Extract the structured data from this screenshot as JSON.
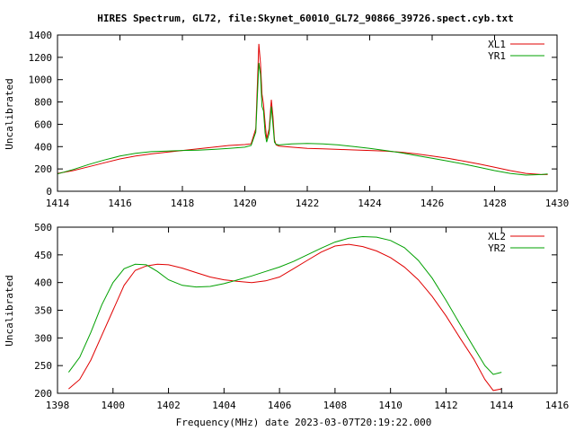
{
  "figure": {
    "title": "HIRES Spectrum, GL72, file:Skynet_60010_GL72_90866_39726.spect.cyb.txt",
    "xlabel": "Frequency(MHz) date 2023-03-07T20:19:22.000"
  },
  "chart_data": [
    {
      "type": "line",
      "ylabel": "Uncalibrated",
      "xlim": [
        1414,
        1430
      ],
      "ylim": [
        0,
        1400
      ],
      "xticks": [
        1414,
        1416,
        1418,
        1420,
        1422,
        1424,
        1426,
        1428,
        1430
      ],
      "yticks": [
        0,
        200,
        400,
        600,
        800,
        1000,
        1200,
        1400
      ],
      "grid": false,
      "legend_position": "top-right",
      "series": [
        {
          "name": "XL1",
          "color": "#e00000",
          "x": [
            1414.0,
            1414.5,
            1415.0,
            1415.5,
            1416.0,
            1416.5,
            1417.0,
            1417.5,
            1418.0,
            1418.5,
            1419.0,
            1419.5,
            1420.0,
            1420.2,
            1420.35,
            1420.45,
            1420.5,
            1420.55,
            1420.6,
            1420.65,
            1420.7,
            1420.78,
            1420.85,
            1420.9,
            1420.95,
            1421.0,
            1421.1,
            1421.5,
            1422.0,
            1422.5,
            1423.0,
            1423.5,
            1424.0,
            1424.5,
            1425.0,
            1425.5,
            1426.0,
            1426.5,
            1427.0,
            1427.5,
            1428.0,
            1428.5,
            1429.0,
            1429.5,
            1429.7
          ],
          "y": [
            160,
            185,
            220,
            255,
            290,
            315,
            335,
            350,
            365,
            380,
            395,
            410,
            418,
            425,
            560,
            1320,
            1150,
            870,
            780,
            610,
            470,
            560,
            820,
            670,
            460,
            415,
            405,
            395,
            385,
            380,
            375,
            370,
            365,
            360,
            350,
            335,
            315,
            295,
            270,
            245,
            215,
            185,
            160,
            150,
            150
          ]
        },
        {
          "name": "YR1",
          "color": "#00a000",
          "x": [
            1414.0,
            1414.5,
            1415.0,
            1415.5,
            1416.0,
            1416.5,
            1417.0,
            1417.5,
            1418.0,
            1418.5,
            1419.0,
            1419.5,
            1420.0,
            1420.2,
            1420.35,
            1420.45,
            1420.5,
            1420.55,
            1420.6,
            1420.65,
            1420.7,
            1420.78,
            1420.85,
            1420.9,
            1420.95,
            1421.0,
            1421.1,
            1421.5,
            1422.0,
            1422.5,
            1423.0,
            1423.5,
            1424.0,
            1424.5,
            1425.0,
            1425.5,
            1426.0,
            1426.5,
            1427.0,
            1427.5,
            1428.0,
            1428.5,
            1429.0,
            1429.5,
            1429.7
          ],
          "y": [
            155,
            195,
            240,
            280,
            315,
            340,
            355,
            360,
            365,
            368,
            375,
            385,
            395,
            410,
            530,
            1150,
            1050,
            760,
            720,
            520,
            440,
            520,
            760,
            600,
            440,
            420,
            415,
            425,
            428,
            425,
            415,
            400,
            385,
            365,
            345,
            320,
            295,
            270,
            245,
            215,
            185,
            160,
            145,
            150,
            155
          ]
        }
      ]
    },
    {
      "type": "line",
      "ylabel": "Uncalibrated",
      "xlim": [
        1398,
        1416
      ],
      "ylim": [
        200,
        500
      ],
      "xticks": [
        1398,
        1400,
        1402,
        1404,
        1406,
        1408,
        1410,
        1412,
        1414,
        1416
      ],
      "yticks": [
        200,
        250,
        300,
        350,
        400,
        450,
        500
      ],
      "grid": false,
      "legend_position": "top-right",
      "series": [
        {
          "name": "XL2",
          "color": "#e00000",
          "x": [
            1398.4,
            1398.8,
            1399.2,
            1399.6,
            1400.0,
            1400.4,
            1400.8,
            1401.2,
            1401.6,
            1402.0,
            1402.5,
            1403.0,
            1403.5,
            1404.0,
            1404.5,
            1405.0,
            1405.5,
            1406.0,
            1406.5,
            1407.0,
            1407.5,
            1408.0,
            1408.5,
            1409.0,
            1409.5,
            1410.0,
            1410.5,
            1411.0,
            1411.5,
            1412.0,
            1412.5,
            1413.0,
            1413.4,
            1413.7,
            1414.0
          ],
          "y": [
            208,
            225,
            260,
            305,
            350,
            395,
            422,
            430,
            433,
            432,
            426,
            418,
            410,
            405,
            402,
            400,
            403,
            410,
            425,
            440,
            455,
            466,
            469,
            465,
            457,
            445,
            428,
            405,
            375,
            340,
            300,
            262,
            225,
            205,
            208
          ]
        },
        {
          "name": "YR2",
          "color": "#00a000",
          "x": [
            1398.4,
            1398.8,
            1399.2,
            1399.6,
            1400.0,
            1400.4,
            1400.8,
            1401.2,
            1401.6,
            1402.0,
            1402.5,
            1403.0,
            1403.5,
            1404.0,
            1404.5,
            1405.0,
            1405.5,
            1406.0,
            1406.5,
            1407.0,
            1407.5,
            1408.0,
            1408.5,
            1409.0,
            1409.5,
            1410.0,
            1410.5,
            1411.0,
            1411.5,
            1412.0,
            1412.5,
            1413.0,
            1413.4,
            1413.7,
            1414.0
          ],
          "y": [
            238,
            265,
            310,
            360,
            400,
            425,
            433,
            432,
            420,
            405,
            395,
            392,
            393,
            398,
            405,
            412,
            420,
            428,
            438,
            450,
            462,
            473,
            480,
            483,
            482,
            476,
            463,
            440,
            408,
            368,
            325,
            283,
            250,
            234,
            238
          ]
        }
      ]
    }
  ]
}
